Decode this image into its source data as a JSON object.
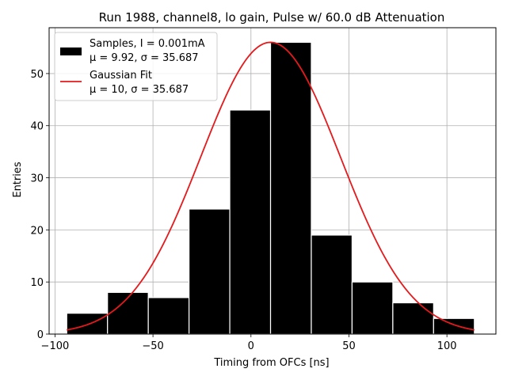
{
  "chart_data": {
    "type": "bar",
    "title": "Run 1988, channel8, lo gain, Pulse w/ 60.0 dB Attenuation",
    "xlabel": "Timing from OFCs [ns]",
    "ylabel": "Entries",
    "xlim": [
      -103,
      125
    ],
    "ylim": [
      0,
      58.8
    ],
    "grid": true,
    "xticks": [
      -100,
      -50,
      0,
      50,
      100
    ],
    "xtick_labels": [
      "−100",
      "−50",
      "0",
      "50",
      "100"
    ],
    "yticks": [
      0,
      10,
      20,
      30,
      40,
      50
    ],
    "yticks_labels": [
      "0",
      "10",
      "20",
      "30",
      "40",
      "50"
    ],
    "histogram": {
      "name": "Samples",
      "bin_edges": [
        -94,
        -73.2,
        -52.4,
        -31.6,
        -10.8,
        10,
        30.8,
        51.6,
        72.4,
        93.2,
        114
      ],
      "counts": [
        4,
        8,
        7,
        24,
        43,
        56,
        19,
        10,
        6,
        3
      ],
      "color": "#000000",
      "edge_color": "#ffffff"
    },
    "gaussian_fit": {
      "name": "Gaussian Fit",
      "mu": 10,
      "sigma": 35.687,
      "amplitude": 56,
      "x_range": [
        -94,
        114
      ],
      "color": "#e41a1c"
    },
    "legend": {
      "placement": "top-left",
      "entries": [
        {
          "line1": "Samples, I = 0.001mA",
          "line2": "μ = 9.92, σ = 35.687"
        },
        {
          "line1": "Gaussian Fit",
          "line2": "μ = 10, σ = 35.687"
        }
      ]
    }
  }
}
